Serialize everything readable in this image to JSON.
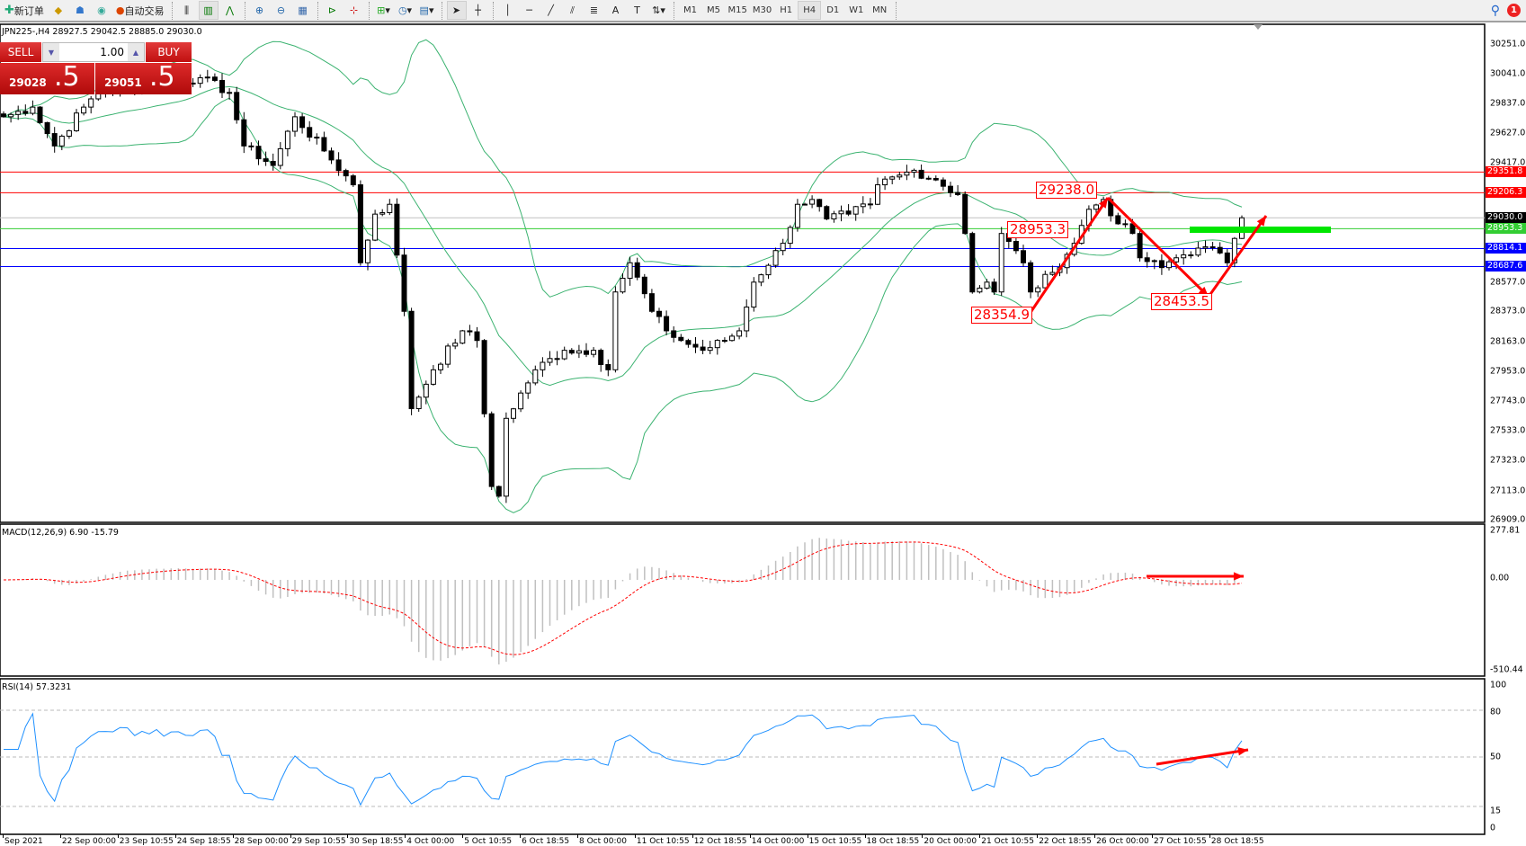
{
  "toolbar": {
    "new_order": "新订单",
    "auto_trade": "自动交易",
    "timeframes": [
      "M1",
      "M5",
      "M15",
      "M30",
      "H1",
      "H4",
      "D1",
      "W1",
      "MN"
    ],
    "active_timeframe": "H4",
    "notification_count": "1"
  },
  "chart": {
    "header": "JPN225-,H4  28927.5 29042.5 28885.0 29030.0"
  },
  "trade_panel": {
    "sell": "SELL",
    "buy": "BUY",
    "lot": "1.00",
    "bid_main": "29028",
    "bid_frac": ".5",
    "ask_main": "29051",
    "ask_frac": ".5"
  },
  "price_axis": {
    "ticks": [
      "30251.0",
      "30041.0",
      "29837.0",
      "29627.0",
      "29417.0",
      "28577.0",
      "28373.0",
      "28163.0",
      "27953.0",
      "27743.0",
      "27533.0",
      "27323.0",
      "27113.0",
      "26909.0"
    ],
    "tick_values": [
      30251,
      30041,
      29837,
      29627,
      29417,
      28577,
      28373,
      28163,
      27953,
      27743,
      27533,
      27323,
      27113,
      26909
    ],
    "range": [
      26909,
      30251
    ]
  },
  "levels": [
    {
      "price": "29351.8",
      "color": "#ff0000"
    },
    {
      "price": "29206.3",
      "color": "#ff0000"
    },
    {
      "price": "29030.0",
      "color": "#000000",
      "line": "#c0c0c0"
    },
    {
      "price": "28953.3",
      "color": "#32cd32"
    },
    {
      "price": "28814.1",
      "color": "#0000ff"
    },
    {
      "price": "28687.6",
      "color": "#0000ff"
    }
  ],
  "annotations": [
    "29238.0",
    "28953.3",
    "28354.9",
    "28453.5"
  ],
  "price_path": [
    [
      0,
      29740
    ],
    [
      4,
      29808
    ],
    [
      7,
      29535
    ],
    [
      11,
      29808
    ],
    [
      13,
      29911
    ],
    [
      27,
      30014
    ],
    [
      31,
      29911
    ],
    [
      33,
      29535
    ],
    [
      37,
      29398
    ],
    [
      40,
      29740
    ],
    [
      44,
      29500
    ],
    [
      48,
      29262
    ],
    [
      49,
      28714
    ],
    [
      51,
      29056
    ],
    [
      53,
      29125
    ],
    [
      55,
      28373
    ],
    [
      56,
      27689
    ],
    [
      59,
      27962
    ],
    [
      63,
      28236
    ],
    [
      65,
      28168
    ],
    [
      67,
      27142
    ],
    [
      68,
      27074
    ],
    [
      69,
      27621
    ],
    [
      73,
      27962
    ],
    [
      77,
      28099
    ],
    [
      81,
      28099
    ],
    [
      83,
      27962
    ],
    [
      84,
      28509
    ],
    [
      86,
      28714
    ],
    [
      89,
      28373
    ],
    [
      91,
      28236
    ],
    [
      93,
      28168
    ],
    [
      96,
      28099
    ],
    [
      99,
      28168
    ],
    [
      101,
      28236
    ],
    [
      103,
      28578
    ],
    [
      107,
      28851
    ],
    [
      109,
      29125
    ],
    [
      111,
      29159
    ],
    [
      113,
      29022
    ],
    [
      116,
      29056
    ],
    [
      119,
      29125
    ],
    [
      120,
      29262
    ],
    [
      123,
      29330
    ],
    [
      125,
      29364
    ],
    [
      128,
      29296
    ],
    [
      131,
      29193
    ],
    [
      132,
      28920
    ],
    [
      133,
      28509
    ],
    [
      135,
      28578
    ],
    [
      136,
      28509
    ],
    [
      137,
      28920
    ],
    [
      140,
      28714
    ],
    [
      141,
      28509
    ],
    [
      144,
      28646
    ],
    [
      147,
      28851
    ],
    [
      149,
      29090
    ],
    [
      151,
      29159
    ],
    [
      153,
      28988
    ],
    [
      155,
      28920
    ],
    [
      156,
      28749
    ],
    [
      159,
      28680
    ],
    [
      161,
      28749
    ],
    [
      164,
      28817
    ],
    [
      167,
      28783
    ],
    [
      168,
      28714
    ],
    [
      169,
      28885
    ],
    [
      170,
      29030
    ]
  ],
  "macd": {
    "label": "MACD(12,26,9) 6.90 -15.79",
    "ticks": [
      "277.81",
      "0.00",
      "-510.44"
    ],
    "range": [
      -510.44,
      277.81
    ]
  },
  "rsi": {
    "label": "RSI(14) 57.3231",
    "ticks": [
      "100",
      "80",
      "50",
      "15",
      "0"
    ]
  },
  "time_axis": [
    "Sep 2021",
    "22 Sep 00:00",
    "23 Sep 10:55",
    "24 Sep 18:55",
    "28 Sep 00:00",
    "29 Sep 10:55",
    "30 Sep 18:55",
    "4 Oct 00:00",
    "5 Oct 10:55",
    "6 Oct 18:55",
    "8 Oct 00:00",
    "11 Oct 10:55",
    "12 Oct 18:55",
    "14 Oct 00:00",
    "15 Oct 10:55",
    "18 Oct 18:55",
    "20 Oct 00:00",
    "21 Oct 10:55",
    "22 Oct 18:55",
    "26 Oct 00:00",
    "27 Oct 10:55",
    "28 Oct 18:55"
  ],
  "colors": {
    "bands": "#3cb371",
    "signal": "#ff0000",
    "histogram": "#c0c0c0",
    "rsi": "#1e90ff",
    "arrows": "#ff0000",
    "support_bar": "#00e600"
  }
}
